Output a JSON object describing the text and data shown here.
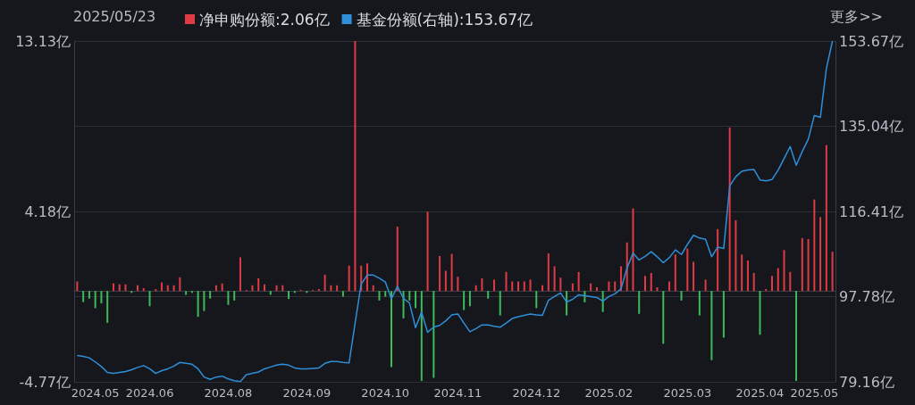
{
  "chart_data": {
    "type": "bar",
    "annotations": [
      "2025/05/23",
      "更多>>"
    ],
    "categories": [
      null,
      null,
      null,
      "2024.05",
      null,
      null,
      null,
      null,
      null,
      null,
      null,
      null,
      "2024.06",
      null,
      null,
      null,
      null,
      null,
      null,
      null,
      null,
      null,
      null,
      null,
      null,
      "2024.08",
      null,
      null,
      null,
      null,
      null,
      null,
      null,
      null,
      null,
      null,
      null,
      null,
      "2024.09",
      null,
      null,
      null,
      null,
      null,
      null,
      null,
      null,
      null,
      null,
      null,
      null,
      "2024.10",
      null,
      null,
      null,
      null,
      null,
      null,
      null,
      null,
      null,
      null,
      null,
      "2024.11",
      null,
      null,
      null,
      null,
      null,
      null,
      null,
      null,
      null,
      null,
      null,
      null,
      "2024.12",
      null,
      null,
      null,
      null,
      null,
      null,
      null,
      null,
      null,
      null,
      null,
      "2025.02",
      null,
      null,
      null,
      null,
      null,
      null,
      null,
      null,
      null,
      null,
      null,
      null,
      "2025.03",
      null,
      null,
      null,
      null,
      null,
      null,
      null,
      null,
      null,
      null,
      null,
      "2025.04",
      null,
      null,
      null,
      null,
      null,
      null,
      null,
      null,
      "2025.05",
      null,
      null,
      null
    ],
    "series": [
      {
        "name": "净申购份额:2.06亿",
        "values": [
          0.5,
          -0.58,
          -0.4,
          -0.9,
          -0.65,
          -1.67,
          0.4,
          0.35,
          0.35,
          -0.1,
          0.3,
          0.15,
          -0.8,
          0.1,
          0.45,
          0.3,
          0.3,
          0.72,
          -0.2,
          -0.1,
          -1.36,
          -1.05,
          -0.4,
          0.3,
          0.4,
          -0.73,
          -0.5,
          1.77,
          0.05,
          0.3,
          0.67,
          0.35,
          -0.2,
          0.3,
          0.3,
          -0.42,
          -0.1,
          0.05,
          -0.1,
          0.05,
          0.1,
          0.86,
          0.3,
          0.3,
          -0.3,
          1.33,
          13.13,
          1.33,
          1.45,
          0.3,
          -0.5,
          -0.3,
          -4.0,
          3.38,
          -1.44,
          -0.5,
          -0.9,
          -4.72,
          4.16,
          -4.56,
          1.84,
          1.06,
          1.95,
          0.75,
          -1.0,
          -0.8,
          0.3,
          0.67,
          -0.4,
          0.6,
          -1.28,
          1.0,
          0.5,
          0.5,
          0.5,
          0.6,
          -0.9,
          0.3,
          1.97,
          1.3,
          0.7,
          -1.28,
          0.4,
          1.0,
          -0.6,
          0.4,
          0.2,
          -1.1,
          0.5,
          0.5,
          1.3,
          2.55,
          4.34,
          -1.2,
          0.8,
          0.95,
          0.2,
          -2.77,
          0.5,
          1.92,
          -0.5,
          2.23,
          1.53,
          -1.28,
          0.6,
          -3.63,
          3.25,
          -2.45,
          8.59,
          3.72,
          1.92,
          1.6,
          0.95,
          -2.3,
          0.1,
          0.8,
          1.2,
          2.15,
          1.0,
          -4.72,
          2.78,
          2.73,
          4.81,
          3.88,
          7.66,
          2.06
        ],
        "colors": [
          "#e03b45",
          "#3dbb5a",
          "#3dbb5a",
          "#3dbb5a",
          "#3dbb5a",
          "#3dbb5a",
          "#e03b45",
          "#e03b45",
          "#e03b45",
          "#3dbb5a",
          "#e03b45",
          "#e03b45",
          "#3dbb5a",
          "#e03b45",
          "#e03b45",
          "#e03b45",
          "#e03b45",
          "#e03b45",
          "#3dbb5a",
          "#3dbb5a",
          "#3dbb5a",
          "#3dbb5a",
          "#3dbb5a",
          "#e03b45",
          "#e03b45",
          "#3dbb5a",
          "#3dbb5a",
          "#e03b45",
          "#e03b45",
          "#e03b45",
          "#e03b45",
          "#e03b45",
          "#3dbb5a",
          "#e03b45",
          "#e03b45",
          "#3dbb5a",
          "#3dbb5a",
          "#e03b45",
          "#3dbb5a",
          "#e03b45",
          "#e03b45",
          "#e03b45",
          "#e03b45",
          "#e03b45",
          "#3dbb5a",
          "#e03b45",
          "#e03b45",
          "#e03b45",
          "#e03b45",
          "#e03b45",
          "#3dbb5a",
          "#3dbb5a",
          "#3dbb5a",
          "#e03b45",
          "#3dbb5a",
          "#3dbb5a",
          "#3dbb5a",
          "#3dbb5a",
          "#e03b45",
          "#3dbb5a",
          "#e03b45",
          "#e03b45",
          "#e03b45",
          "#e03b45",
          "#3dbb5a",
          "#3dbb5a",
          "#e03b45",
          "#e03b45",
          "#3dbb5a",
          "#e03b45",
          "#3dbb5a",
          "#e03b45",
          "#e03b45",
          "#e03b45",
          "#e03b45",
          "#e03b45",
          "#3dbb5a",
          "#e03b45",
          "#e03b45",
          "#e03b45",
          "#e03b45",
          "#3dbb5a",
          "#e03b45",
          "#e03b45",
          "#3dbb5a",
          "#e03b45",
          "#e03b45",
          "#3dbb5a",
          "#e03b45",
          "#e03b45",
          "#e03b45",
          "#e03b45",
          "#e03b45",
          "#3dbb5a",
          "#e03b45",
          "#e03b45",
          "#e03b45",
          "#3dbb5a",
          "#e03b45",
          "#e03b45",
          "#3dbb5a",
          "#e03b45",
          "#e03b45",
          "#3dbb5a",
          "#e03b45",
          "#3dbb5a",
          "#e03b45",
          "#3dbb5a",
          "#e03b45",
          "#e03b45",
          "#e03b45",
          "#e03b45",
          "#e03b45",
          "#3dbb5a",
          "#e03b45",
          "#e03b45",
          "#e03b45",
          "#e03b45",
          "#e03b45",
          "#3dbb5a",
          "#e03b45",
          "#e03b45",
          "#e03b45",
          "#e03b45",
          "#e03b45",
          "#e03b45"
        ],
        "color": "#e03b45"
      },
      {
        "name": "基金份额(右轴):153.67亿",
        "type": "line",
        "axis": "y2",
        "color": "#2f8fd8",
        "values": [
          84.9,
          84.7,
          84.4,
          83.5,
          82.5,
          81.2,
          81.0,
          81.2,
          81.4,
          81.8,
          82.3,
          82.7,
          82.0,
          81.0,
          81.6,
          82.0,
          82.6,
          83.4,
          83.2,
          83.0,
          82.0,
          80.2,
          79.7,
          80.2,
          80.4,
          79.8,
          79.4,
          79.2,
          80.7,
          81.0,
          81.3,
          82.0,
          82.4,
          82.8,
          83.0,
          82.8,
          82.2,
          82.0,
          82.0,
          82.1,
          82.2,
          83.2,
          83.6,
          83.6,
          83.4,
          83.3,
          92.0,
          100.5,
          102.5,
          102.5,
          101.8,
          101.0,
          97.3,
          100.0,
          97.4,
          96.4,
          91.0,
          94.4,
          90.0,
          91.1,
          91.5,
          92.5,
          93.8,
          94.0,
          92.0,
          90.1,
          90.8,
          91.6,
          91.6,
          91.3,
          91.1,
          92.0,
          93.0,
          93.4,
          93.7,
          94.0,
          93.8,
          93.7,
          97.0,
          97.8,
          98.6,
          96.6,
          97.2,
          98.2,
          98.0,
          97.8,
          97.6,
          96.8,
          97.8,
          98.4,
          99.5,
          104.0,
          107.3,
          105.8,
          106.6,
          107.6,
          106.5,
          105.2,
          106.3,
          108.0,
          107.0,
          109.2,
          111.2,
          110.6,
          110.3,
          106.5,
          108.6,
          108.3,
          122.0,
          124.0,
          125.2,
          125.5,
          125.6,
          123.3,
          123.1,
          123.4,
          125.4,
          128.0,
          130.6,
          126.5,
          129.5,
          132.2,
          137.4,
          137.0,
          147.7,
          153.67
        ]
      }
    ],
    "ylim": [
      -4.77,
      13.13
    ],
    "yticks": [
      {
        "value": -4.77,
        "label": "-4.77亿"
      },
      {
        "value": 4.18,
        "label": "4.18亿"
      },
      {
        "value": 13.13,
        "label": "13.13亿"
      }
    ],
    "y2lim": [
      79.16,
      153.67
    ],
    "y2ticks": [
      {
        "value": 79.16,
        "label": "79.16亿"
      },
      {
        "value": 97.78,
        "label": "97.78亿"
      },
      {
        "value": 116.41,
        "label": "116.41亿"
      },
      {
        "value": 135.04,
        "label": "135.04亿"
      },
      {
        "value": 153.67,
        "label": "153.67亿"
      }
    ],
    "grid": "y",
    "legend": "top left",
    "marker": "none"
  }
}
